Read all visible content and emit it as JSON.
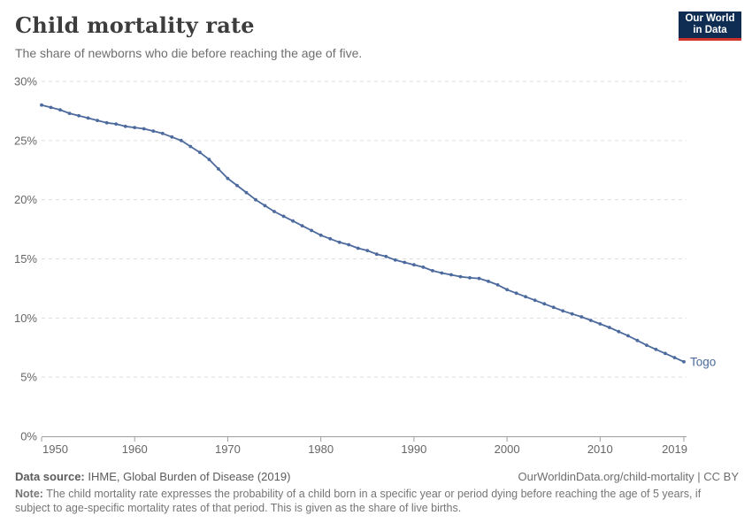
{
  "header": {
    "title": "Child mortality rate",
    "subtitle": "The share of newborns who die before reaching the age of five.",
    "logo": {
      "line1": "Our World",
      "line2": "in Data",
      "bg_color": "#0f2d52",
      "accent_color": "#cf332c"
    }
  },
  "chart_data": {
    "type": "line",
    "title": "Child mortality rate",
    "xlabel": "",
    "ylabel": "",
    "xlim": [
      1950,
      2019
    ],
    "ylim": [
      0,
      30
    ],
    "grid": "horizontal-dashed",
    "legend_position": "end-of-line-label",
    "x_ticks": [
      1950,
      1960,
      1970,
      1980,
      1990,
      2000,
      2010,
      2019
    ],
    "y_gridlines": [
      0,
      5,
      10,
      15,
      20,
      25,
      30
    ],
    "y_tick_suffix": "%",
    "colors": {
      "line": "#4c6a9d",
      "gridline": "#dddddd",
      "axis": "#9e9e9e",
      "tick_label": "#666666"
    },
    "series": [
      {
        "name": "Togo",
        "color": "#4c6a9d",
        "x": [
          1950,
          1951,
          1952,
          1953,
          1954,
          1955,
          1956,
          1957,
          1958,
          1959,
          1960,
          1961,
          1962,
          1963,
          1964,
          1965,
          1966,
          1967,
          1968,
          1969,
          1970,
          1971,
          1972,
          1973,
          1974,
          1975,
          1976,
          1977,
          1978,
          1979,
          1980,
          1981,
          1982,
          1983,
          1984,
          1985,
          1986,
          1987,
          1988,
          1989,
          1990,
          1991,
          1992,
          1993,
          1994,
          1995,
          1996,
          1997,
          1998,
          1999,
          2000,
          2001,
          2002,
          2003,
          2004,
          2005,
          2006,
          2007,
          2008,
          2009,
          2010,
          2011,
          2012,
          2013,
          2014,
          2015,
          2016,
          2017,
          2018,
          2019
        ],
        "values": [
          28.0,
          27.8,
          27.6,
          27.3,
          27.1,
          26.9,
          26.7,
          26.5,
          26.4,
          26.2,
          26.1,
          26.0,
          25.8,
          25.6,
          25.3,
          25.0,
          24.5,
          24.0,
          23.4,
          22.6,
          21.8,
          21.2,
          20.6,
          20.0,
          19.5,
          19.0,
          18.6,
          18.2,
          17.8,
          17.4,
          17.0,
          16.7,
          16.4,
          16.2,
          15.9,
          15.7,
          15.4,
          15.2,
          14.9,
          14.7,
          14.5,
          14.3,
          14.0,
          13.8,
          13.65,
          13.5,
          13.4,
          13.35,
          13.1,
          12.8,
          12.4,
          12.1,
          11.8,
          11.5,
          11.2,
          10.9,
          10.6,
          10.35,
          10.1,
          9.8,
          9.5,
          9.2,
          8.85,
          8.5,
          8.1,
          7.7,
          7.35,
          7.0,
          6.65,
          6.3
        ]
      }
    ]
  },
  "footer": {
    "data_source_label": "Data source:",
    "data_source_value": " IHME, Global Burden of Disease (2019)",
    "link": "OurWorldinData.org/child-mortality | CC BY",
    "note_label": "Note:",
    "note_value": " The child mortality rate expresses the probability of a child born in a specific year or period dying before reaching the age of 5 years, if subject to age-specific mortality rates of that period. This is given as the share of live births."
  }
}
